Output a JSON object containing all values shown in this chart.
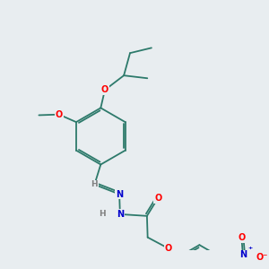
{
  "bg_color": "#e8edf0",
  "bond_color": "#2d7a6b",
  "atom_colors": {
    "O": "#ff0000",
    "N": "#0000cc",
    "H": "#808080",
    "C": "#2d7a6b"
  },
  "font_size": 7.0,
  "bond_width": 1.3,
  "dbo": 0.055
}
